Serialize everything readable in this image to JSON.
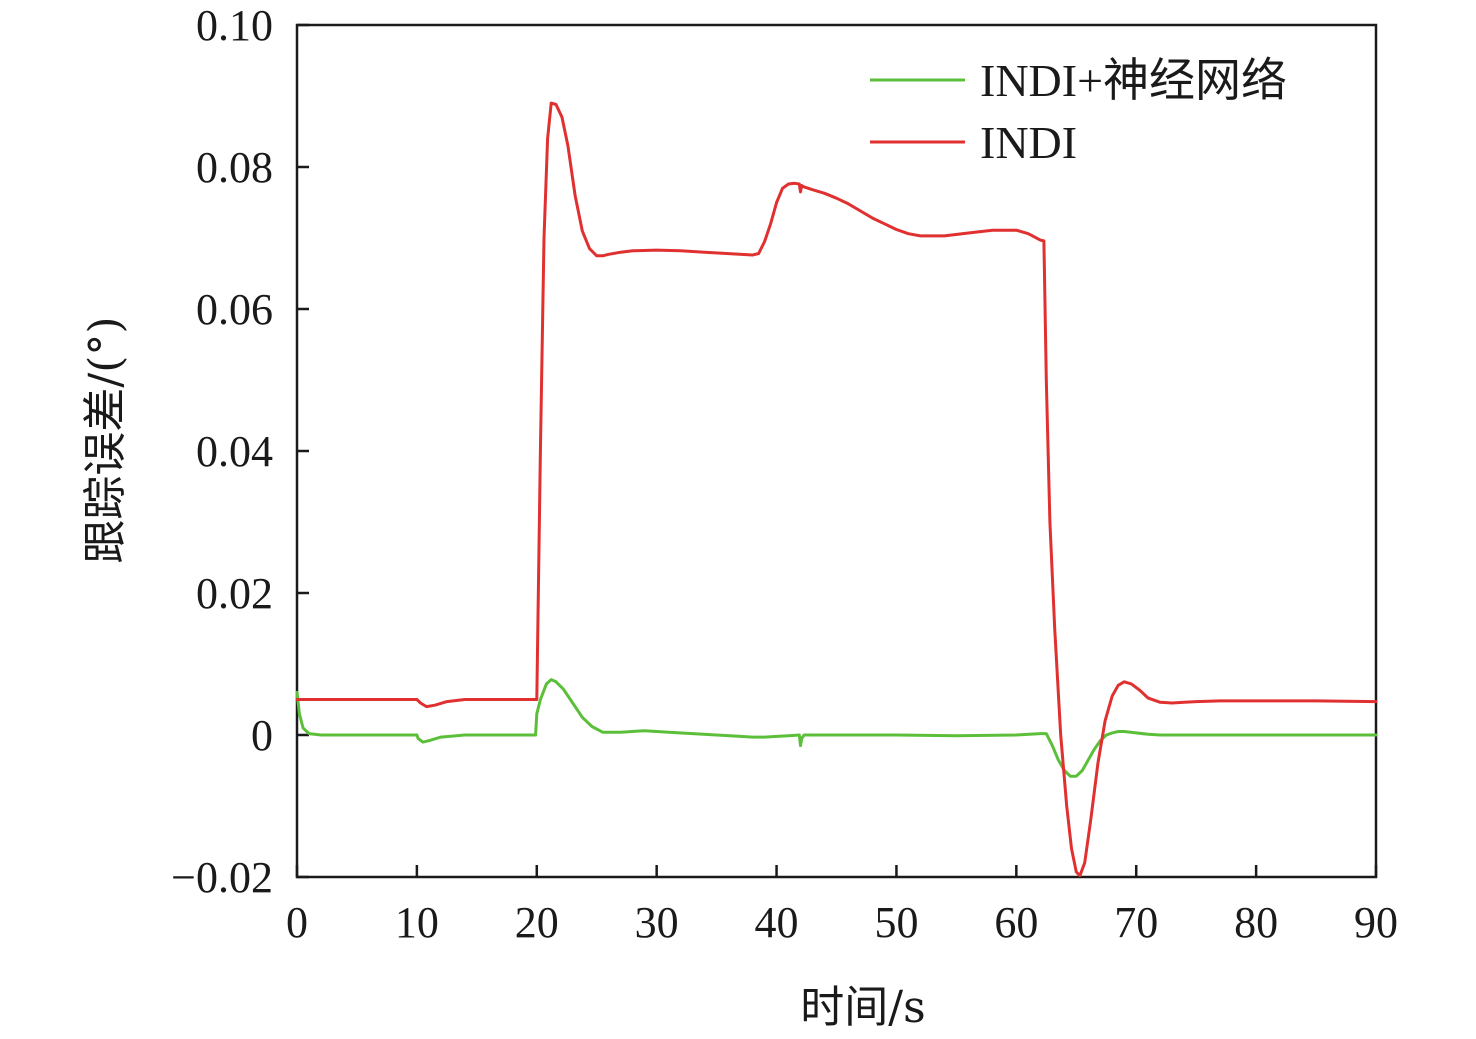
{
  "chart_data": {
    "type": "line",
    "title": "",
    "xlabel": "时间/s",
    "ylabel": "跟踪误差/(°)",
    "xlim": [
      0,
      90
    ],
    "ylim": [
      -0.02,
      0.1
    ],
    "xticks": [
      0,
      10,
      20,
      30,
      40,
      50,
      60,
      70,
      80,
      90
    ],
    "yticks": [
      -0.02,
      0,
      0.02,
      0.04,
      0.06,
      0.08,
      0.1
    ],
    "xtick_labels": [
      "0",
      "10",
      "20",
      "30",
      "40",
      "50",
      "60",
      "70",
      "80",
      "90"
    ],
    "ytick_labels": [
      "−0.02",
      "0",
      "0.02",
      "0.04",
      "0.06",
      "0.08",
      "0.10"
    ],
    "grid": false,
    "legend_position": "top-right",
    "series": [
      {
        "name": "INDI+神经网络",
        "color": "#5cbf3a",
        "x": [
          0,
          0.2,
          0.5,
          1,
          2,
          5,
          9,
          10,
          10.1,
          10.5,
          11,
          12,
          14,
          16,
          18,
          19.9,
          20,
          20.3,
          20.8,
          21.2,
          21.6,
          22.2,
          23,
          23.8,
          24.6,
          25.5,
          27,
          29,
          31,
          33,
          35,
          37,
          38,
          39,
          40,
          41,
          41.9,
          42,
          42.1,
          42.3,
          43,
          45,
          50,
          55,
          60,
          62,
          62.5,
          63,
          63.5,
          64,
          64.5,
          65,
          65.5,
          66,
          66.5,
          67,
          67.5,
          68,
          68.5,
          69,
          70,
          71,
          72,
          73,
          75,
          78,
          80,
          85,
          90
        ],
        "y": [
          0.006,
          0.003,
          0.001,
          0.0002,
          0,
          0,
          0,
          0,
          -0.0005,
          -0.001,
          -0.0008,
          -0.0003,
          0,
          0,
          0,
          0,
          0.003,
          0.005,
          0.0072,
          0.0078,
          0.0075,
          0.0065,
          0.0045,
          0.0025,
          0.0012,
          0.0004,
          0.0004,
          0.0006,
          0.0004,
          0.0002,
          0,
          -0.0002,
          -0.0003,
          -0.0003,
          -0.0002,
          -0.0001,
          0,
          -0.0015,
          -0.0005,
          0,
          0,
          0,
          0,
          -0.0001,
          0,
          0.0002,
          0.0002,
          -0.0015,
          -0.0035,
          -0.005,
          -0.0058,
          -0.0058,
          -0.005,
          -0.0035,
          -0.002,
          -0.0008,
          0,
          0.0003,
          0.0005,
          0.0005,
          0.0003,
          0.0001,
          0,
          0,
          0,
          0,
          0,
          0,
          0
        ]
      },
      {
        "name": "INDI",
        "color": "#e03030",
        "x": [
          0,
          0.1,
          1,
          5,
          9,
          10,
          10.3,
          10.8,
          11.5,
          12.5,
          14,
          16,
          18,
          19.9,
          20,
          20.3,
          20.6,
          20.9,
          21.2,
          21.6,
          22.1,
          22.6,
          23.2,
          23.8,
          24.4,
          25,
          25.5,
          26,
          27,
          28,
          30,
          32,
          34,
          36,
          38,
          38.5,
          39,
          39.5,
          40,
          40.5,
          41,
          41.5,
          41.9,
          42,
          42.1,
          42.3,
          43,
          44,
          45,
          46,
          47,
          48,
          49,
          50,
          51,
          52,
          54,
          56,
          58,
          60,
          61,
          62,
          62.3,
          62.5,
          62.8,
          63.2,
          63.7,
          64.2,
          64.6,
          65,
          65.3,
          65.7,
          66.2,
          66.8,
          67.4,
          68,
          68.5,
          69,
          69.6,
          70.3,
          71,
          72,
          73,
          74,
          75,
          77,
          80,
          85,
          90
        ],
        "y": [
          0.005,
          0.005,
          0.005,
          0.005,
          0.005,
          0.005,
          0.0045,
          0.004,
          0.0042,
          0.0047,
          0.005,
          0.005,
          0.005,
          0.005,
          0.005,
          0.04,
          0.07,
          0.084,
          0.089,
          0.0888,
          0.087,
          0.083,
          0.076,
          0.071,
          0.0685,
          0.0675,
          0.0675,
          0.0677,
          0.068,
          0.0682,
          0.0683,
          0.0682,
          0.068,
          0.0678,
          0.0676,
          0.0678,
          0.0695,
          0.072,
          0.075,
          0.077,
          0.0776,
          0.0777,
          0.0776,
          0.0765,
          0.0774,
          0.0772,
          0.0768,
          0.0763,
          0.0756,
          0.0748,
          0.0738,
          0.0728,
          0.072,
          0.0712,
          0.0706,
          0.0703,
          0.0703,
          0.0707,
          0.0711,
          0.0711,
          0.0706,
          0.0697,
          0.0696,
          0.05,
          0.03,
          0.015,
          0.0,
          -0.01,
          -0.016,
          -0.0193,
          -0.0198,
          -0.018,
          -0.012,
          -0.004,
          0.002,
          0.0055,
          0.007,
          0.0075,
          0.0072,
          0.0063,
          0.0052,
          0.0046,
          0.0045,
          0.0046,
          0.0047,
          0.0048,
          0.0048,
          0.0048,
          0.0047
        ]
      }
    ]
  }
}
